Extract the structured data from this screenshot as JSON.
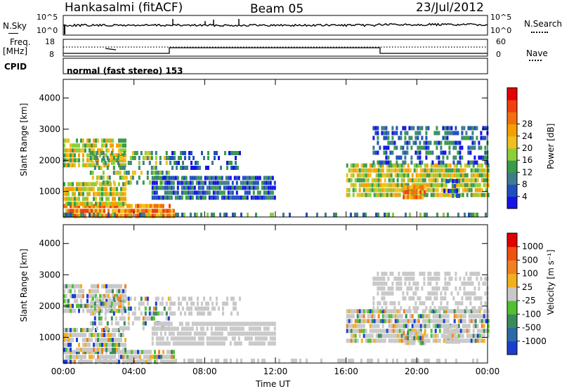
{
  "header": {
    "title": "Hankasalmi (fitACF)",
    "beam": "Beam 05",
    "date": "23/Jul/2012"
  },
  "panels": {
    "nsky_label": "N.Sky",
    "nsky_ticks": [
      "10^5",
      "10^0"
    ],
    "nsearch_label": "N.Search",
    "nsearch_ticks": [
      "10^5",
      "10^0"
    ],
    "freq_label": "Freq.",
    "freq_unit": "[MHz]",
    "freq_ticks": [
      "18",
      "8"
    ],
    "nave_label": "Nave",
    "nave_ticks": [
      "60",
      "0"
    ],
    "cpid_label": "CPID",
    "cpid_text": "normal (fast stereo) 153"
  },
  "chart_data": [
    {
      "type": "heatmap",
      "name": "power",
      "ylabel": "Slant Range [km]",
      "xlabel": "",
      "x_ticks": [
        "00:00",
        "04:00",
        "08:00",
        "12:00",
        "16:00",
        "20:00",
        "00:00"
      ],
      "x_range_hours": [
        0,
        24
      ],
      "y_ticks": [
        1000,
        2000,
        3000,
        4000
      ],
      "ylim": [
        180,
        4600
      ],
      "colorbar": {
        "label": "Power [dB]",
        "ticks": [
          4,
          8,
          12,
          16,
          20,
          24,
          28
        ],
        "colors": [
          "#1414e6",
          "#1f4fbf",
          "#3d7d8c",
          "#3a9a4a",
          "#8ccf3a",
          "#f0c020",
          "#f5a000",
          "#f07010",
          "#f04010",
          "#e60000"
        ]
      }
    },
    {
      "type": "heatmap",
      "name": "velocity",
      "ylabel": "Slant Range [km]",
      "xlabel": "Time UT",
      "x_ticks": [
        "00:00",
        "04:00",
        "08:00",
        "12:00",
        "16:00",
        "20:00",
        "00:00"
      ],
      "x_range_hours": [
        0,
        24
      ],
      "y_ticks": [
        1000,
        2000,
        3000,
        4000
      ],
      "ylim": [
        180,
        4600
      ],
      "colorbar": {
        "label": "Velocity [m s⁻¹]",
        "ticks": [
          "1000",
          "500",
          "100",
          "25",
          "-25",
          "-100",
          "-500",
          "-1000"
        ],
        "colors": [
          "#1a3fd0",
          "#2a6aa8",
          "#3a8a5a",
          "#52c030",
          "#c8c8c8",
          "#f0b020",
          "#f08020",
          "#f05010",
          "#e00000"
        ]
      }
    }
  ],
  "colors": {
    "ground_scatter": "#c0c0c0",
    "frame": "#000000"
  }
}
